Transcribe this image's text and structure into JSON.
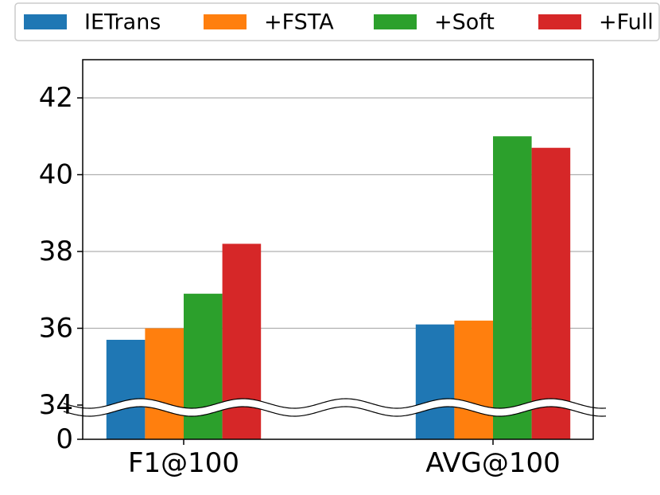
{
  "chart_data": {
    "type": "bar",
    "broken_axis": true,
    "categories": [
      "F1@100",
      "AVG@100"
    ],
    "series": [
      {
        "name": "IETrans",
        "color": "#1f77b4",
        "values": [
          35.7,
          36.1
        ]
      },
      {
        "name": "+FSTA",
        "color": "#ff7f0e",
        "values": [
          36.0,
          36.2
        ]
      },
      {
        "name": "+Soft",
        "color": "#2ca02c",
        "values": [
          36.9,
          41.0
        ]
      },
      {
        "name": "+Full",
        "color": "#d62728",
        "values": [
          38.2,
          40.7
        ]
      }
    ],
    "yticks": [
      "0",
      "34",
      "36",
      "38",
      "40",
      "42"
    ],
    "ylim_lower": [
      0,
      34
    ],
    "ylim_upper": [
      34,
      43
    ],
    "grid": "y",
    "legend_position": "top",
    "title": "",
    "xlabel": "",
    "ylabel": ""
  }
}
